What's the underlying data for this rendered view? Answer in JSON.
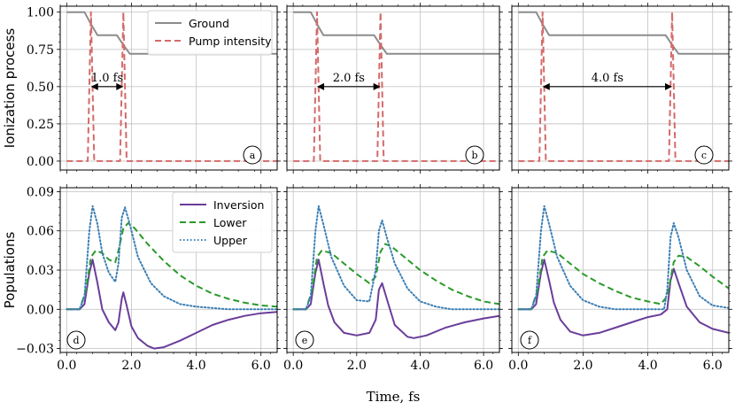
{
  "chart_data": [
    {
      "type": "line",
      "panel_label": "a",
      "ylabel": "Ionization process",
      "xlim": [
        -0.2,
        6.5
      ],
      "ylim": [
        -0.06,
        1.04
      ],
      "xticks": [
        "0.0",
        "2.0",
        "4.0",
        "6.0"
      ],
      "yticks": [
        "0.00",
        "0.25",
        "0.50",
        "0.75",
        "1.00"
      ],
      "grid": true,
      "legend": "top-right",
      "delay_annotation": "1.0 fs",
      "pulses_at": [
        0.75,
        1.75
      ],
      "series": [
        {
          "name": "Ground",
          "style": "solid",
          "color": "#8c8c8c",
          "x": [
            0.0,
            0.55,
            0.75,
            0.95,
            1.55,
            1.75,
            1.95,
            6.5
          ],
          "y": [
            1.0,
            1.0,
            0.92,
            0.845,
            0.845,
            0.78,
            0.72,
            0.72
          ]
        },
        {
          "name": "Pump intensity",
          "style": "dashed",
          "color": "#d46a6a",
          "x": [
            0.0,
            0.65,
            0.75,
            0.85,
            1.65,
            1.75,
            1.85,
            6.5
          ],
          "y": [
            0.0,
            0.0,
            1.0,
            0.0,
            0.0,
            1.0,
            0.0,
            0.0
          ]
        }
      ]
    },
    {
      "type": "line",
      "panel_label": "b",
      "ylabel": "",
      "xlim": [
        -0.2,
        6.5
      ],
      "ylim": [
        -0.06,
        1.04
      ],
      "xticks": [
        "0.0",
        "2.0",
        "4.0",
        "6.0"
      ],
      "grid": true,
      "delay_annotation": "2.0 fs",
      "pulses_at": [
        0.75,
        2.75
      ],
      "series": [
        {
          "name": "Ground",
          "style": "solid",
          "color": "#8c8c8c",
          "x": [
            0.0,
            0.55,
            0.75,
            0.95,
            2.55,
            2.75,
            2.95,
            6.5
          ],
          "y": [
            1.0,
            1.0,
            0.92,
            0.845,
            0.845,
            0.78,
            0.72,
            0.72
          ]
        },
        {
          "name": "Pump intensity",
          "style": "dashed",
          "color": "#d46a6a",
          "x": [
            0.0,
            0.65,
            0.75,
            0.85,
            2.65,
            2.75,
            2.85,
            6.5
          ],
          "y": [
            0.0,
            0.0,
            1.0,
            0.0,
            0.0,
            1.0,
            0.0,
            0.0
          ]
        }
      ]
    },
    {
      "type": "line",
      "panel_label": "c",
      "ylabel": "",
      "xlim": [
        -0.2,
        6.5
      ],
      "ylim": [
        -0.06,
        1.04
      ],
      "xticks": [
        "0.0",
        "2.0",
        "4.0",
        "6.0"
      ],
      "grid": true,
      "delay_annotation": "4.0 fs",
      "pulses_at": [
        0.75,
        4.75
      ],
      "series": [
        {
          "name": "Ground",
          "style": "solid",
          "color": "#8c8c8c",
          "x": [
            0.0,
            0.55,
            0.75,
            0.95,
            4.55,
            4.75,
            4.95,
            6.5
          ],
          "y": [
            1.0,
            1.0,
            0.92,
            0.845,
            0.845,
            0.78,
            0.72,
            0.72
          ]
        },
        {
          "name": "Pump intensity",
          "style": "dashed",
          "color": "#d46a6a",
          "x": [
            0.0,
            0.65,
            0.75,
            0.85,
            4.65,
            4.75,
            4.85,
            6.5
          ],
          "y": [
            0.0,
            0.0,
            1.0,
            0.0,
            0.0,
            1.0,
            0.0,
            0.0
          ]
        }
      ]
    },
    {
      "type": "line",
      "panel_label": "d",
      "ylabel": "Populations",
      "xlabel": "",
      "xlim": [
        -0.2,
        6.5
      ],
      "ylim": [
        -0.033,
        0.093
      ],
      "xticks": [
        "0.0",
        "2.0",
        "4.0",
        "6.0"
      ],
      "yticks": [
        "−0.03",
        "0.00",
        "0.03",
        "0.06",
        "0.09"
      ],
      "grid": true,
      "legend": "top-right",
      "series": [
        {
          "name": "Inversion",
          "style": "solid",
          "color": "#6a3d9a",
          "x": [
            0.0,
            0.4,
            0.55,
            0.7,
            0.8,
            0.95,
            1.1,
            1.3,
            1.5,
            1.6,
            1.7,
            1.75,
            1.85,
            2.0,
            2.2,
            2.5,
            2.7,
            3.0,
            3.5,
            4.0,
            4.5,
            5.0,
            5.5,
            6.0,
            6.5
          ],
          "y": [
            0.0,
            0.0,
            0.004,
            0.028,
            0.038,
            0.02,
            0.0,
            -0.01,
            -0.016,
            -0.01,
            0.008,
            0.013,
            0.003,
            -0.013,
            -0.022,
            -0.028,
            -0.03,
            -0.029,
            -0.024,
            -0.018,
            -0.012,
            -0.008,
            -0.005,
            -0.003,
            -0.002
          ]
        },
        {
          "name": "Lower",
          "style": "dashed",
          "color": "#2a9a2a",
          "x": [
            0.0,
            0.4,
            0.6,
            0.75,
            0.9,
            1.1,
            1.3,
            1.5,
            1.6,
            1.75,
            1.9,
            2.1,
            2.5,
            3.0,
            3.5,
            4.0,
            4.5,
            5.0,
            5.5,
            6.0,
            6.5
          ],
          "y": [
            0.0,
            0.0,
            0.015,
            0.04,
            0.045,
            0.043,
            0.038,
            0.036,
            0.045,
            0.062,
            0.066,
            0.062,
            0.05,
            0.037,
            0.026,
            0.018,
            0.012,
            0.008,
            0.005,
            0.003,
            0.002
          ]
        },
        {
          "name": "Upper",
          "style": "dotted",
          "color": "#3b7fb5",
          "x": [
            0.0,
            0.4,
            0.55,
            0.7,
            0.8,
            0.95,
            1.1,
            1.3,
            1.5,
            1.6,
            1.7,
            1.8,
            1.95,
            2.2,
            2.6,
            3.0,
            3.5,
            4.0,
            5.0,
            6.5
          ],
          "y": [
            0.0,
            0.0,
            0.01,
            0.06,
            0.079,
            0.065,
            0.043,
            0.028,
            0.021,
            0.035,
            0.07,
            0.078,
            0.065,
            0.04,
            0.02,
            0.01,
            0.004,
            0.002,
            0.0,
            0.0
          ]
        }
      ]
    },
    {
      "type": "line",
      "panel_label": "e",
      "ylabel": "",
      "xlabel": "Time, fs",
      "xlim": [
        -0.2,
        6.5
      ],
      "ylim": [
        -0.033,
        0.093
      ],
      "xticks": [
        "0.0",
        "2.0",
        "4.0",
        "6.0"
      ],
      "grid": true,
      "series": [
        {
          "name": "Inversion",
          "style": "solid",
          "color": "#6a3d9a",
          "x": [
            0.0,
            0.4,
            0.55,
            0.7,
            0.8,
            0.95,
            1.1,
            1.3,
            1.6,
            2.0,
            2.4,
            2.6,
            2.7,
            2.8,
            2.95,
            3.2,
            3.6,
            3.8,
            4.2,
            4.8,
            5.4,
            6.0,
            6.5
          ],
          "y": [
            0.0,
            0.0,
            0.004,
            0.028,
            0.038,
            0.02,
            0.003,
            -0.01,
            -0.018,
            -0.02,
            -0.018,
            -0.008,
            0.015,
            0.02,
            0.008,
            -0.012,
            -0.021,
            -0.022,
            -0.02,
            -0.014,
            -0.01,
            -0.007,
            -0.005
          ]
        },
        {
          "name": "Lower",
          "style": "dashed",
          "color": "#2a9a2a",
          "x": [
            0.0,
            0.4,
            0.6,
            0.75,
            0.9,
            1.2,
            1.6,
            2.0,
            2.4,
            2.6,
            2.75,
            2.9,
            3.1,
            3.5,
            4.0,
            4.5,
            5.0,
            5.5,
            6.0,
            6.5
          ],
          "y": [
            0.0,
            0.0,
            0.015,
            0.04,
            0.045,
            0.043,
            0.035,
            0.027,
            0.02,
            0.025,
            0.044,
            0.05,
            0.048,
            0.04,
            0.03,
            0.022,
            0.015,
            0.01,
            0.006,
            0.004
          ]
        },
        {
          "name": "Upper",
          "style": "dotted",
          "color": "#3b7fb5",
          "x": [
            0.0,
            0.4,
            0.55,
            0.7,
            0.8,
            0.95,
            1.2,
            1.6,
            2.0,
            2.4,
            2.6,
            2.7,
            2.8,
            2.95,
            3.2,
            3.6,
            4.0,
            4.5,
            5.0,
            6.5
          ],
          "y": [
            0.0,
            0.0,
            0.01,
            0.06,
            0.079,
            0.065,
            0.04,
            0.018,
            0.007,
            0.006,
            0.03,
            0.06,
            0.068,
            0.055,
            0.035,
            0.016,
            0.006,
            0.002,
            0.0,
            0.0
          ]
        }
      ]
    },
    {
      "type": "line",
      "panel_label": "f",
      "ylabel": "",
      "xlim": [
        -0.2,
        6.5
      ],
      "ylim": [
        -0.033,
        0.093
      ],
      "xticks": [
        "0.0",
        "2.0",
        "4.0",
        "6.0"
      ],
      "grid": true,
      "series": [
        {
          "name": "Inversion",
          "style": "solid",
          "color": "#6a3d9a",
          "x": [
            0.0,
            0.4,
            0.55,
            0.7,
            0.8,
            0.95,
            1.1,
            1.3,
            1.6,
            2.0,
            2.5,
            3.0,
            3.5,
            4.0,
            4.4,
            4.6,
            4.7,
            4.8,
            4.95,
            5.2,
            5.6,
            6.0,
            6.5
          ],
          "y": [
            0.0,
            0.0,
            0.004,
            0.028,
            0.038,
            0.022,
            0.005,
            -0.008,
            -0.017,
            -0.02,
            -0.018,
            -0.014,
            -0.01,
            -0.006,
            -0.004,
            0.0,
            0.022,
            0.031,
            0.02,
            0.002,
            -0.01,
            -0.015,
            -0.018
          ]
        },
        {
          "name": "Lower",
          "style": "dashed",
          "color": "#2a9a2a",
          "x": [
            0.0,
            0.4,
            0.6,
            0.75,
            0.9,
            1.2,
            1.6,
            2.0,
            2.5,
            3.0,
            3.5,
            4.0,
            4.4,
            4.6,
            4.8,
            4.95,
            5.2,
            5.6,
            6.0,
            6.5
          ],
          "y": [
            0.0,
            0.0,
            0.015,
            0.04,
            0.045,
            0.043,
            0.035,
            0.027,
            0.02,
            0.014,
            0.009,
            0.006,
            0.004,
            0.01,
            0.036,
            0.041,
            0.04,
            0.033,
            0.025,
            0.016
          ]
        },
        {
          "name": "Upper",
          "style": "dotted",
          "color": "#3b7fb5",
          "x": [
            0.0,
            0.4,
            0.55,
            0.7,
            0.8,
            0.95,
            1.2,
            1.6,
            2.0,
            2.5,
            3.0,
            4.0,
            4.5,
            4.6,
            4.7,
            4.8,
            4.95,
            5.2,
            5.6,
            6.0,
            6.5
          ],
          "y": [
            0.0,
            0.0,
            0.01,
            0.06,
            0.079,
            0.065,
            0.04,
            0.018,
            0.007,
            0.002,
            0.0,
            0.0,
            0.0,
            0.015,
            0.055,
            0.066,
            0.055,
            0.03,
            0.01,
            0.003,
            0.001
          ]
        }
      ]
    }
  ]
}
